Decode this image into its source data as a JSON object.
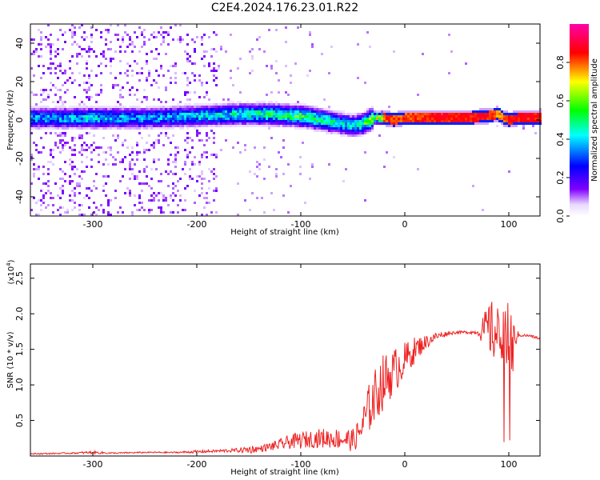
{
  "title": "C2E4.2024.176.23.01.R22",
  "chart_data": [
    {
      "type": "heatmap",
      "xlabel": "Height of straight line (km)",
      "ylabel": "Frequency (Hz)",
      "xlim": [
        -360,
        130
      ],
      "ylim": [
        -50,
        50
      ],
      "xticks": [
        -300,
        -200,
        -100,
        0,
        100
      ],
      "yticks": [
        -40,
        -20,
        0,
        20,
        40
      ],
      "colorbar": {
        "label": "Normalized spectral amplitude",
        "range": [
          0,
          1
        ],
        "ticks": [
          0.0,
          0.2,
          0.4,
          0.6,
          0.8
        ],
        "colormap": [
          "#ffffff",
          "#8000ff",
          "#0000ff",
          "#00ffff",
          "#00ff00",
          "#ffff00",
          "#ff0000",
          "#ff00ff"
        ]
      },
      "ridge": {
        "x": [
          -360,
          -300,
          -250,
          -200,
          -160,
          -130,
          -100,
          -80,
          -60,
          -50,
          -40,
          -30,
          -20,
          -10,
          0,
          30,
          60,
          80,
          90,
          95,
          100,
          110,
          130
        ],
        "freq": [
          1,
          1,
          1,
          2,
          3,
          3,
          2,
          0,
          -2,
          -3,
          -2,
          1,
          1,
          0,
          1,
          1,
          1,
          2,
          3,
          1,
          0,
          1,
          1
        ],
        "amplitude": [
          0.4,
          0.45,
          0.4,
          0.45,
          0.5,
          0.55,
          0.6,
          0.55,
          0.5,
          0.45,
          0.55,
          0.7,
          0.85,
          0.85,
          0.85,
          0.9,
          0.9,
          0.9,
          0.8,
          0.85,
          0.9,
          0.9,
          0.9
        ]
      }
    },
    {
      "type": "line",
      "xlabel": "Height of straight line (km)",
      "ylabel": "SNR (10 * v/v)",
      "y_scale_label": "(x10^4)",
      "xlim": [
        -360,
        130
      ],
      "ylim": [
        0,
        2.7
      ],
      "xticks": [
        -300,
        -200,
        -100,
        0,
        100
      ],
      "yticks": [
        0.5,
        1.0,
        1.5,
        2.0,
        2.5
      ],
      "color": "#ee2222",
      "series": [
        {
          "x": [
            -360,
            -320,
            -300,
            -280,
            -250,
            -220,
            -200,
            -180,
            -160,
            -150,
            -140,
            -130,
            -120,
            -110,
            -100,
            -90,
            -80,
            -70,
            -60,
            -50,
            -45,
            -40,
            -35,
            -30,
            -25,
            -20,
            -15,
            -10,
            -5,
            0,
            5,
            10,
            20,
            30,
            40,
            50,
            60,
            70,
            75,
            80,
            85,
            90,
            95,
            100,
            102,
            105,
            110,
            120,
            130
          ],
          "values": [
            0.03,
            0.04,
            0.05,
            0.04,
            0.05,
            0.05,
            0.06,
            0.07,
            0.08,
            0.09,
            0.1,
            0.13,
            0.16,
            0.2,
            0.22,
            0.24,
            0.25,
            0.25,
            0.24,
            0.22,
            0.3,
            0.45,
            0.65,
            0.8,
            0.95,
            1.05,
            1.12,
            1.2,
            1.28,
            1.35,
            1.42,
            1.5,
            1.6,
            1.68,
            1.72,
            1.74,
            1.74,
            1.74,
            1.76,
            1.8,
            1.75,
            1.7,
            1.72,
            1.6,
            1.2,
            1.68,
            1.7,
            1.69,
            1.65
          ],
          "noise": [
            0.01,
            0.01,
            0.02,
            0.01,
            0.01,
            0.01,
            0.02,
            0.02,
            0.03,
            0.06,
            0.04,
            0.06,
            0.08,
            0.1,
            0.12,
            0.12,
            0.14,
            0.14,
            0.15,
            0.16,
            0.2,
            0.28,
            0.35,
            0.38,
            0.4,
            0.4,
            0.35,
            0.32,
            0.3,
            0.25,
            0.22,
            0.18,
            0.1,
            0.06,
            0.03,
            0.02,
            0.02,
            0.03,
            0.2,
            0.35,
            0.45,
            0.4,
            0.35,
            0.6,
            0.8,
            0.2,
            0.02,
            0.02,
            0.02
          ]
        }
      ]
    }
  ]
}
